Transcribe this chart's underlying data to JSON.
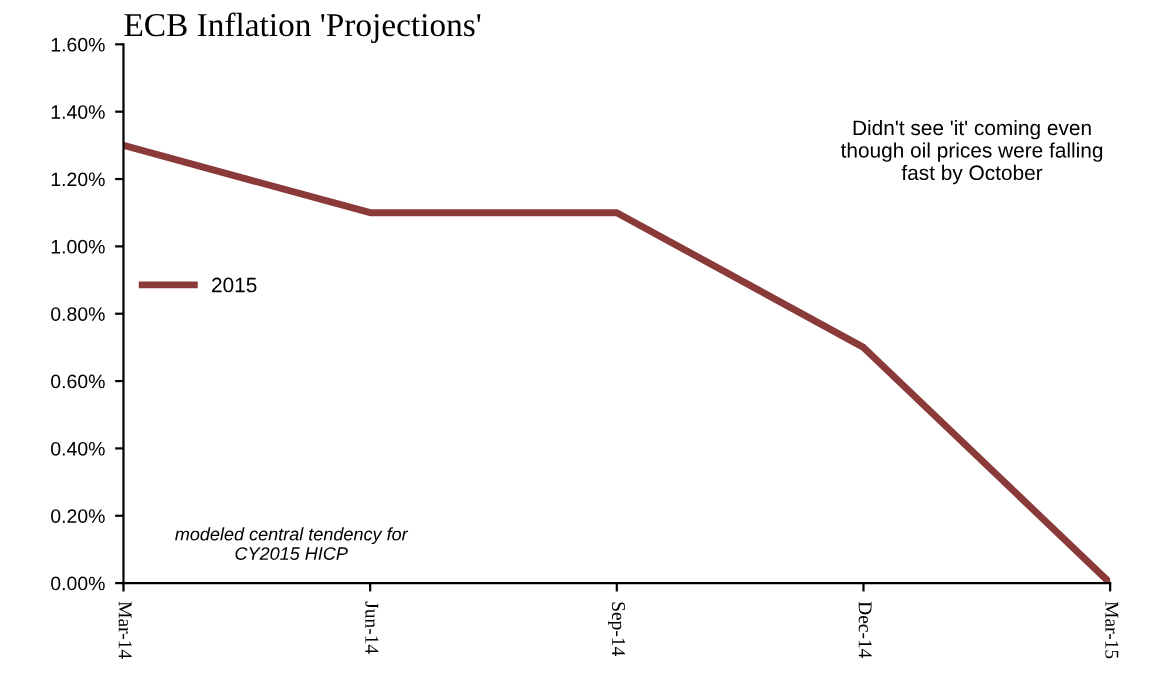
{
  "chart_data": {
    "type": "line",
    "title": "ECB Inflation 'Projections'",
    "categories": [
      "Mar-14",
      "Jun-14",
      "Sep-14",
      "Dec-14",
      "Mar-15"
    ],
    "series": [
      {
        "name": "2015",
        "color": "#8b3a3a",
        "values": [
          1.3,
          1.1,
          1.1,
          0.7,
          0.0
        ]
      }
    ],
    "ylim": [
      0,
      1.6
    ],
    "yticks": [
      {
        "value": 0,
        "label": "0.00%"
      },
      {
        "value": 0.2,
        "label": "0.20%"
      },
      {
        "value": 0.4,
        "label": "0.40%"
      },
      {
        "value": 0.6,
        "label": "0.60%"
      },
      {
        "value": 0.8,
        "label": "0.80%"
      },
      {
        "value": 1.0,
        "label": "1.00%"
      },
      {
        "value": 1.2,
        "label": "1.20%"
      },
      {
        "value": 1.4,
        "label": "1.40%"
      },
      {
        "value": 1.6,
        "label": "1.60%"
      }
    ],
    "grid": false,
    "legend": "left",
    "marker": "none",
    "line_style": "solid",
    "annotations": [
      "Didn't see 'it' coming even\nthough oil prices were falling\nfast by October",
      "modeled central tendency for\nCY2015 HICP"
    ]
  }
}
